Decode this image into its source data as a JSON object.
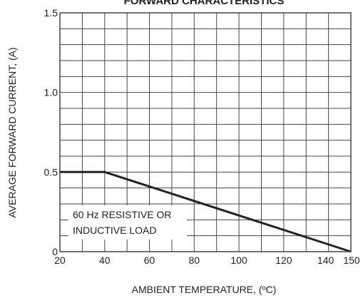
{
  "chart_data": {
    "type": "line",
    "title": "FORWARD CHARACTERISTICS",
    "xlabel": "AMBIENT TEMPERATURE, (ºC)",
    "ylabel": "AVERAGE FORWARD CURRENT, (A)",
    "xlim": [
      20,
      150
    ],
    "ylim": [
      0,
      1.5
    ],
    "x_ticks": [
      20,
      40,
      60,
      80,
      100,
      120,
      140,
      150
    ],
    "x_tick_labels": [
      "20",
      "40",
      "60",
      "80",
      "100",
      "120",
      "140",
      "150"
    ],
    "y_ticks": [
      0,
      0.5,
      1.0,
      1.5
    ],
    "y_tick_labels": [
      "0",
      "0.5",
      "1.0",
      "1.5"
    ],
    "x_grid": [
      20,
      30,
      40,
      50,
      60,
      70,
      80,
      90,
      100,
      110,
      120,
      130,
      140,
      150
    ],
    "y_grid": [
      0,
      0.1,
      0.2,
      0.3,
      0.4,
      0.5,
      0.6,
      0.7,
      0.8,
      0.9,
      1.0,
      1.1,
      1.2,
      1.3,
      1.4,
      1.5
    ],
    "grid": true,
    "series": [
      {
        "x": [
          20,
          40,
          150
        ],
        "y": [
          0.5,
          0.5,
          0
        ]
      }
    ],
    "annotation": {
      "lines": [
        "60 Hz RESISTIVE OR",
        "INDUCTIVE LOAD"
      ],
      "x": 23,
      "y": 0.19
    },
    "colors": {
      "line": "#222222",
      "grid": "#444444",
      "text": "#222222"
    }
  }
}
